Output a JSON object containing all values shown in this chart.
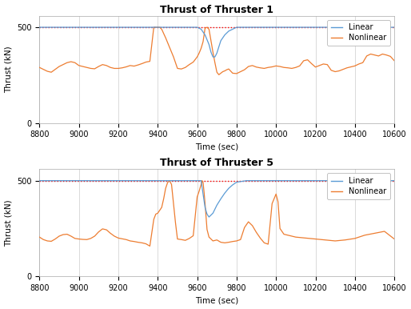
{
  "title1": "Thrust of Thruster 1",
  "title2": "Thrust of Thruster 5",
  "xlabel": "Time (sec)",
  "ylabel": "Thrust (kN)",
  "xlim": [
    8800,
    10600
  ],
  "ylim": [
    0,
    560
  ],
  "yticks": [
    0,
    500
  ],
  "xticks": [
    8800,
    9000,
    9200,
    9400,
    9600,
    9800,
    10000,
    10200,
    10400,
    10600
  ],
  "redline_y": 500,
  "linear_color": "#5b9bd5",
  "nonlinear_color": "#ed7d31",
  "redline_color": "#ff0000",
  "background_color": "#ffffff",
  "grid_color": "#cccccc",
  "t1_nonlinear_x": [
    8800,
    8820,
    8840,
    8860,
    8880,
    8900,
    8920,
    8940,
    8960,
    8980,
    9000,
    9020,
    9040,
    9060,
    9080,
    9100,
    9120,
    9140,
    9160,
    9180,
    9200,
    9220,
    9240,
    9260,
    9280,
    9300,
    9320,
    9340,
    9360,
    9380,
    9390,
    9400,
    9410,
    9420,
    9440,
    9460,
    9480,
    9500,
    9520,
    9540,
    9560,
    9580,
    9600,
    9610,
    9620,
    9630,
    9640,
    9650,
    9660,
    9670,
    9680,
    9690,
    9700,
    9710,
    9720,
    9730,
    9740,
    9750,
    9760,
    9780,
    9800,
    9820,
    9840,
    9860,
    9880,
    9900,
    9920,
    9940,
    9960,
    9980,
    10000,
    10020,
    10040,
    10060,
    10080,
    10100,
    10120,
    10140,
    10160,
    10180,
    10200,
    10220,
    10240,
    10260,
    10280,
    10300,
    10320,
    10340,
    10360,
    10380,
    10400,
    10420,
    10440,
    10460,
    10480,
    10500,
    10520,
    10540,
    10560,
    10580,
    10600
  ],
  "t1_nonlinear_y": [
    290,
    280,
    270,
    265,
    280,
    295,
    305,
    315,
    320,
    315,
    300,
    295,
    290,
    285,
    283,
    295,
    305,
    300,
    290,
    285,
    285,
    288,
    293,
    300,
    297,
    303,
    310,
    318,
    322,
    500,
    500,
    500,
    500,
    490,
    445,
    395,
    345,
    285,
    282,
    290,
    305,
    318,
    345,
    365,
    390,
    425,
    495,
    500,
    490,
    430,
    370,
    315,
    265,
    252,
    260,
    268,
    272,
    278,
    282,
    260,
    258,
    268,
    278,
    295,
    300,
    292,
    288,
    285,
    290,
    293,
    298,
    295,
    290,
    288,
    285,
    290,
    298,
    325,
    330,
    310,
    292,
    300,
    308,
    305,
    275,
    268,
    272,
    280,
    288,
    293,
    298,
    308,
    315,
    350,
    360,
    355,
    350,
    360,
    355,
    348,
    325
  ],
  "t1_linear_x": [
    8800,
    9380,
    9390,
    9400,
    9500,
    9560,
    9580,
    9600,
    9620,
    9640,
    9650,
    9660,
    9670,
    9680,
    9690,
    9700,
    9710,
    9720,
    9740,
    9760,
    9800,
    9900,
    10000,
    10100,
    10200,
    10300,
    10600
  ],
  "t1_linear_y": [
    500,
    500,
    500,
    500,
    500,
    500,
    500,
    500,
    490,
    460,
    435,
    410,
    370,
    345,
    345,
    365,
    398,
    430,
    460,
    480,
    500,
    500,
    500,
    500,
    500,
    500,
    500
  ],
  "t5_nonlinear_x": [
    8800,
    8820,
    8840,
    8860,
    8880,
    8900,
    8920,
    8940,
    8960,
    8980,
    9000,
    9020,
    9040,
    9060,
    9080,
    9100,
    9120,
    9140,
    9160,
    9180,
    9200,
    9220,
    9240,
    9260,
    9280,
    9300,
    9320,
    9340,
    9360,
    9380,
    9390,
    9400,
    9410,
    9420,
    9430,
    9440,
    9450,
    9460,
    9470,
    9480,
    9490,
    9500,
    9520,
    9540,
    9560,
    9580,
    9600,
    9610,
    9620,
    9625,
    9630,
    9635,
    9640,
    9650,
    9660,
    9680,
    9700,
    9720,
    9740,
    9760,
    9780,
    9800,
    9820,
    9840,
    9860,
    9880,
    9900,
    9920,
    9940,
    9960,
    9980,
    10000,
    10010,
    10020,
    10040,
    10060,
    10080,
    10100,
    10150,
    10200,
    10250,
    10300,
    10350,
    10400,
    10450,
    10500,
    10550,
    10600
  ],
  "t5_nonlinear_y": [
    205,
    192,
    185,
    183,
    195,
    210,
    218,
    220,
    210,
    198,
    195,
    193,
    192,
    198,
    210,
    232,
    248,
    243,
    225,
    210,
    200,
    196,
    192,
    185,
    182,
    178,
    175,
    170,
    158,
    298,
    325,
    330,
    345,
    360,
    405,
    460,
    490,
    500,
    480,
    380,
    280,
    195,
    192,
    188,
    198,
    212,
    415,
    445,
    480,
    500,
    490,
    440,
    380,
    245,
    205,
    185,
    190,
    178,
    175,
    178,
    182,
    185,
    192,
    255,
    285,
    265,
    230,
    200,
    175,
    168,
    380,
    430,
    390,
    250,
    220,
    215,
    210,
    205,
    200,
    195,
    190,
    185,
    190,
    198,
    215,
    225,
    235,
    195
  ],
  "t5_linear_x": [
    8800,
    9540,
    9560,
    9580,
    9600,
    9620,
    9640,
    9650,
    9660,
    9680,
    9700,
    9720,
    9740,
    9760,
    9780,
    9800,
    9850,
    9900,
    9920,
    9940,
    9960,
    9980,
    10000,
    10010,
    10020,
    10040,
    10060,
    10100,
    10200,
    10300,
    10600
  ],
  "t5_linear_y": [
    500,
    500,
    500,
    500,
    500,
    500,
    360,
    325,
    310,
    330,
    372,
    405,
    435,
    460,
    478,
    492,
    500,
    500,
    500,
    500,
    500,
    500,
    500,
    500,
    500,
    500,
    500,
    500,
    500,
    500,
    500
  ]
}
